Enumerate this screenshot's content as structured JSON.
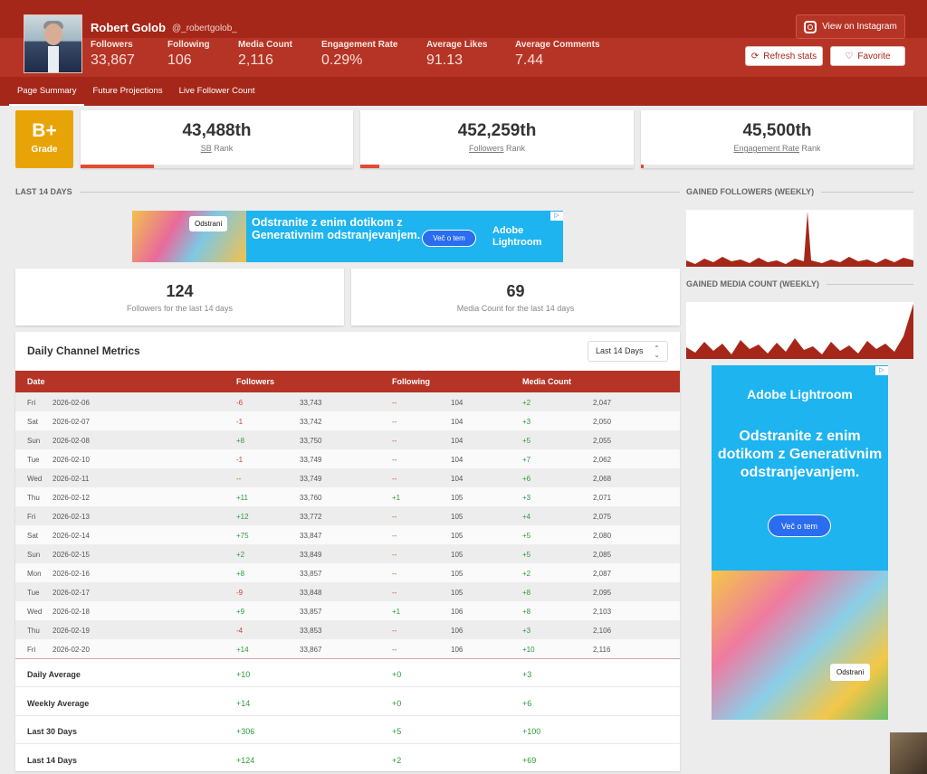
{
  "profile": {
    "name": "Robert Golob",
    "handle": "@_robertgolob_"
  },
  "stats": [
    {
      "label": "Followers",
      "value": "33,867"
    },
    {
      "label": "Following",
      "value": "106"
    },
    {
      "label": "Media Count",
      "value": "2,116"
    },
    {
      "label": "Engagement Rate",
      "value": "0.29%"
    },
    {
      "label": "Average Likes",
      "value": "91.13"
    },
    {
      "label": "Average Comments",
      "value": "7.44"
    }
  ],
  "buttons": {
    "instagram": "View on Instagram",
    "refresh": "Refresh stats",
    "favorite": "Favorite"
  },
  "tabs": [
    "Page Summary",
    "Future Projections",
    "Live Follower Count"
  ],
  "grade": {
    "value": "B+",
    "label": "Grade"
  },
  "ranks": [
    {
      "value": "43,488th",
      "key": "SB",
      "suffix": "Rank",
      "progress": 0.27
    },
    {
      "value": "452,259th",
      "key": "Followers",
      "suffix": "Rank",
      "progress": 0.07
    },
    {
      "value": "45,500th",
      "key": "Engagement Rate",
      "suffix": "Rank",
      "progress": 0.01
    }
  ],
  "sections": {
    "last14": "LAST 14 DAYS",
    "gainedFollowers": "GAINED FOLLOWERS (WEEKLY)",
    "gainedMedia": "GAINED MEDIA COUNT (WEEKLY)"
  },
  "ad_top": {
    "tag": "Odstrani",
    "text": "Odstranite z enim dotikom z Generativnim odstranjevanjem.",
    "cta": "Več o tem",
    "brand_1": "Adobe",
    "brand_2": "Lightroom"
  },
  "ad_side": {
    "brand": "Adobe Lightroom",
    "text": "Odstranite z enim dotikom z Generativnim odstranjevanjem.",
    "cta": "Več o tem",
    "tag": "Odstrani"
  },
  "big": [
    {
      "value": "124",
      "label": "Followers for the last 14 days"
    },
    {
      "value": "69",
      "label": "Media Count for the last 14 days"
    }
  ],
  "table": {
    "title": "Daily Channel Metrics",
    "select": "Last 14 Days",
    "headers": {
      "date": "Date",
      "followers": "Followers",
      "following": "Following",
      "media": "Media Count"
    },
    "rows": [
      {
        "day": "Fri",
        "date": "2026-02-06",
        "fd": "-6",
        "f": "33,743",
        "gd": "--",
        "g": "104",
        "md": "+2",
        "m": "2,047"
      },
      {
        "day": "Sat",
        "date": "2026-02-07",
        "fd": "-1",
        "f": "33,742",
        "gd": "--",
        "g": "104",
        "md": "+3",
        "m": "2,050"
      },
      {
        "day": "Sun",
        "date": "2026-02-08",
        "fd": "+8",
        "f": "33,750",
        "gd": "--",
        "g": "104",
        "md": "+5",
        "m": "2,055"
      },
      {
        "day": "Tue",
        "date": "2026-02-10",
        "fd": "-1",
        "f": "33,749",
        "gd": "--",
        "g": "104",
        "md": "+7",
        "m": "2,062"
      },
      {
        "day": "Wed",
        "date": "2026-02-11",
        "fd": "--",
        "f": "33,749",
        "gd": "--",
        "g": "104",
        "md": "+6",
        "m": "2,068"
      },
      {
        "day": "Thu",
        "date": "2026-02-12",
        "fd": "+11",
        "f": "33,760",
        "gd": "+1",
        "g": "105",
        "md": "+3",
        "m": "2,071"
      },
      {
        "day": "Fri",
        "date": "2026-02-13",
        "fd": "+12",
        "f": "33,772",
        "gd": "--",
        "g": "105",
        "md": "+4",
        "m": "2,075"
      },
      {
        "day": "Sat",
        "date": "2026-02-14",
        "fd": "+75",
        "f": "33,847",
        "gd": "--",
        "g": "105",
        "md": "+5",
        "m": "2,080"
      },
      {
        "day": "Sun",
        "date": "2026-02-15",
        "fd": "+2",
        "f": "33,849",
        "gd": "--",
        "g": "105",
        "md": "+5",
        "m": "2,085"
      },
      {
        "day": "Mon",
        "date": "2026-02-16",
        "fd": "+8",
        "f": "33,857",
        "gd": "--",
        "g": "105",
        "md": "+2",
        "m": "2,087"
      },
      {
        "day": "Tue",
        "date": "2026-02-17",
        "fd": "-9",
        "f": "33,848",
        "gd": "--",
        "g": "105",
        "md": "+8",
        "m": "2,095"
      },
      {
        "day": "Wed",
        "date": "2026-02-18",
        "fd": "+9",
        "f": "33,857",
        "gd": "+1",
        "g": "106",
        "md": "+8",
        "m": "2,103"
      },
      {
        "day": "Thu",
        "date": "2026-02-19",
        "fd": "-4",
        "f": "33,853",
        "gd": "--",
        "g": "106",
        "md": "+3",
        "m": "2,106"
      },
      {
        "day": "Fri",
        "date": "2026-02-20",
        "fd": "+14",
        "f": "33,867",
        "gd": "--",
        "g": "106",
        "md": "+10",
        "m": "2,116"
      }
    ],
    "summary": [
      {
        "label": "Daily Average",
        "f": "+10",
        "g": "+0",
        "m": "+3"
      },
      {
        "label": "Weekly Average",
        "f": "+14",
        "g": "+0",
        "m": "+6"
      },
      {
        "label": "Last 30 Days",
        "f": "+306",
        "g": "+5",
        "m": "+100"
      },
      {
        "label": "Last 14 Days",
        "f": "+124",
        "g": "+2",
        "m": "+69"
      }
    ]
  },
  "colors": {
    "brand": "#a52719",
    "accent": "#e8a406",
    "positive": "#2e9a3b",
    "negative": "#d13e2c"
  }
}
